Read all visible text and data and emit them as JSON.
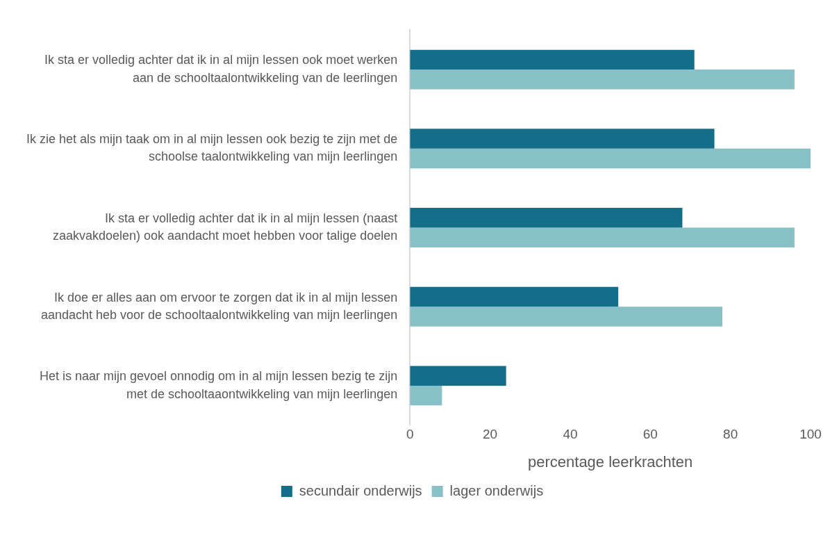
{
  "chart_data": {
    "type": "bar",
    "orientation": "horizontal",
    "xlabel": "percentage leerkrachten",
    "categories": [
      "Ik sta er volledig achter dat ik in al mijn lessen ook moet werken aan de schooltaalontwikkeling van de leerlingen",
      "Ik zie het als mijn taak om in al mijn lessen ook bezig te zijn met de schoolse taalontwikkeling van mijn leerlingen",
      "Ik sta er volledig achter dat ik in al mijn lessen (naast zaakvakdoelen) ook aandacht moet hebben voor talige doelen",
      "Ik doe er alles aan om ervoor te zorgen dat ik in al mijn lessen aandacht heb voor de schooltaalontwikkeling van mijn leerlingen",
      "Het is naar mijn gevoel onnodig om in al mijn lessen bezig te zijn met de schooltaaontwikkeling van mijn leerlingen"
    ],
    "series": [
      {
        "name": "secundair onderwijs",
        "color": "#136e89",
        "values": [
          71,
          76,
          68,
          52,
          24
        ]
      },
      {
        "name": "lager onderwijs",
        "color": "#88c0c8",
        "values": [
          96,
          100,
          96,
          78,
          8
        ]
      }
    ],
    "xlim": [
      0,
      100
    ],
    "xticks": [
      0,
      20,
      40,
      60,
      80,
      100
    ],
    "grid": false,
    "legend": "bottom"
  }
}
